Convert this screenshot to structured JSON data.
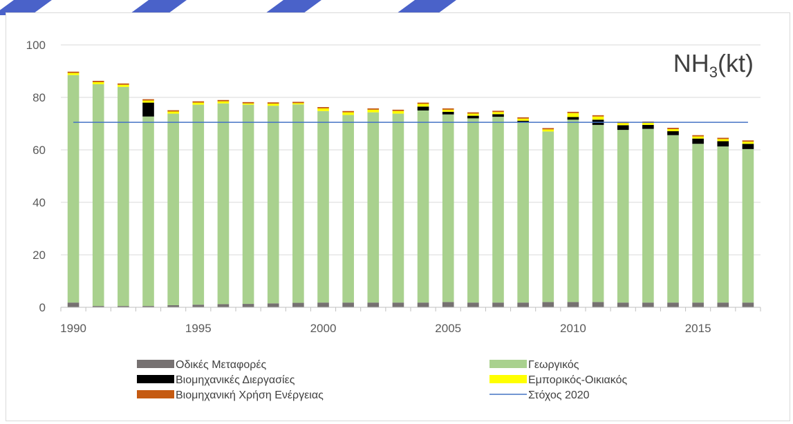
{
  "chart_data": {
    "type": "bar",
    "stacked": true,
    "title_main": "NH",
    "title_sub": "3",
    "title_unit": "(kt)",
    "xlabel": "",
    "ylabel": "",
    "ylim": [
      0,
      100
    ],
    "yticks": [
      "0",
      "20",
      "40",
      "60",
      "80",
      "100"
    ],
    "xtick_labels": [
      {
        "year": 1990,
        "label": "1990"
      },
      {
        "year": 1995,
        "label": "1995"
      },
      {
        "year": 2000,
        "label": "2000"
      },
      {
        "year": 2005,
        "label": "2005"
      },
      {
        "year": 2010,
        "label": "2010"
      },
      {
        "year": 2015,
        "label": "2015"
      }
    ],
    "grid": true,
    "categories": [
      1990,
      1991,
      1992,
      1993,
      1994,
      1995,
      1996,
      1997,
      1998,
      1999,
      2000,
      2001,
      2002,
      2003,
      2004,
      2005,
      2006,
      2007,
      2008,
      2009,
      2010,
      2011,
      2012,
      2013,
      2014,
      2015,
      2016,
      2017
    ],
    "series": [
      {
        "name": "Οδικές Μεταφορές",
        "color": "#767171",
        "values": [
          1.8,
          0.5,
          0.5,
          0.5,
          0.8,
          1.0,
          1.2,
          1.3,
          1.5,
          1.7,
          1.8,
          1.8,
          1.8,
          1.8,
          1.8,
          2.0,
          1.8,
          1.8,
          1.8,
          2.0,
          2.0,
          2.0,
          1.8,
          1.8,
          1.8,
          1.8,
          1.8,
          1.8
        ]
      },
      {
        "name": "Γεωργικός",
        "color": "#a9d18e",
        "values": [
          86.7,
          84.5,
          83.5,
          72.2,
          73.0,
          76.2,
          76.5,
          75.9,
          75.3,
          75.6,
          73.0,
          71.5,
          72.5,
          72.0,
          73.2,
          71.5,
          70.2,
          70.8,
          68.8,
          65.0,
          69.5,
          67.5,
          65.8,
          66.2,
          63.8,
          60.5,
          59.5,
          58.5
        ]
      },
      {
        "name": "Βιομηχανικές Διεργασίες",
        "color": "#000000",
        "values": [
          0,
          0,
          0,
          5.3,
          0,
          0,
          0,
          0,
          0,
          0,
          0,
          0,
          0,
          0,
          1.5,
          1.0,
          1.0,
          1.0,
          0.5,
          0,
          1.0,
          2.0,
          1.8,
          1.5,
          1.5,
          2.0,
          2.0,
          2.0
        ]
      },
      {
        "name": "Εμπορικός-Οικιακός",
        "color": "#ffff00",
        "values": [
          0.8,
          0.8,
          0.8,
          0.8,
          0.8,
          0.8,
          0.8,
          0.5,
          0.8,
          0.5,
          1.0,
          1.0,
          1.0,
          1.0,
          1.0,
          0.8,
          0.8,
          0.8,
          0.8,
          0.8,
          1.5,
          1.2,
          0.8,
          0.8,
          0.8,
          0.8,
          0.8,
          0.8
        ]
      },
      {
        "name": "Βιομηχανική Χρήση  Ενέργειας",
        "color": "#c55a11",
        "values": [
          0.5,
          0.5,
          0.5,
          0.5,
          0.5,
          0.5,
          0.5,
          0.5,
          0.5,
          0.5,
          0.5,
          0.5,
          0.5,
          0.5,
          0.5,
          0.5,
          0.5,
          0.5,
          0.5,
          0.5,
          0.5,
          0.5,
          0.5,
          0.5,
          0.5,
          0.5,
          0.5,
          0.5
        ]
      }
    ],
    "target_line": {
      "name": "Στόχος 2020",
      "value": 70.5,
      "color": "#4472c4"
    },
    "legend": {
      "placement": "bottom",
      "items": [
        {
          "label": "Οδικές Μεταφορές",
          "color": "#767171",
          "kind": "box"
        },
        {
          "label": "Γεωργικός",
          "color": "#a9d18e",
          "kind": "box"
        },
        {
          "label": "Βιομηχανικές Διεργασίες",
          "color": "#000000",
          "kind": "box"
        },
        {
          "label": "Εμπορικός-Οικιακός",
          "color": "#ffff00",
          "kind": "box"
        },
        {
          "label": "Βιομηχανική Χρήση  Ενέργειας",
          "color": "#c55a11",
          "kind": "box"
        },
        {
          "label": "Στόχος 2020",
          "color": "#4472c4",
          "kind": "line"
        }
      ]
    }
  },
  "decor": {
    "watermark_color": "#4a62c9"
  }
}
